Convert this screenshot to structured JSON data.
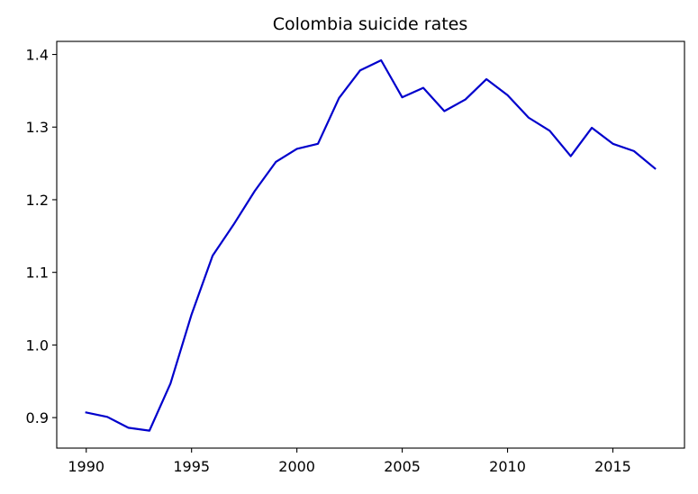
{
  "chart_data": {
    "type": "line",
    "title": "Colombia suicide rates",
    "xlabel": "",
    "ylabel": "",
    "xlim": [
      1988.6,
      2018.4
    ],
    "ylim": [
      0.858,
      1.418
    ],
    "x_ticks": [
      1990,
      1995,
      2000,
      2005,
      2010,
      2015
    ],
    "y_ticks": [
      0.9,
      1.0,
      1.1,
      1.2,
      1.3,
      1.4
    ],
    "x_tick_labels": [
      "1990",
      "1995",
      "2000",
      "2005",
      "2010",
      "2015"
    ],
    "y_tick_labels": [
      "0.9",
      "1.0",
      "1.1",
      "1.2",
      "1.3",
      "1.4"
    ],
    "grid": false,
    "legend": false,
    "series": [
      {
        "color": "#0000cc",
        "x": [
          1990,
          1991,
          1992,
          1993,
          1994,
          1995,
          1996,
          1997,
          1998,
          1999,
          2000,
          2001,
          2002,
          2003,
          2004,
          2005,
          2006,
          2007,
          2008,
          2009,
          2010,
          2011,
          2012,
          2013,
          2014,
          2015,
          2016,
          2017
        ],
        "values": [
          0.907,
          0.901,
          0.886,
          0.882,
          0.947,
          1.042,
          1.123,
          1.166,
          1.212,
          1.252,
          1.27,
          1.277,
          1.34,
          1.378,
          1.392,
          1.341,
          1.354,
          1.322,
          1.338,
          1.366,
          1.344,
          1.313,
          1.295,
          1.26,
          1.299,
          1.277,
          1.267,
          1.243
        ]
      }
    ]
  }
}
